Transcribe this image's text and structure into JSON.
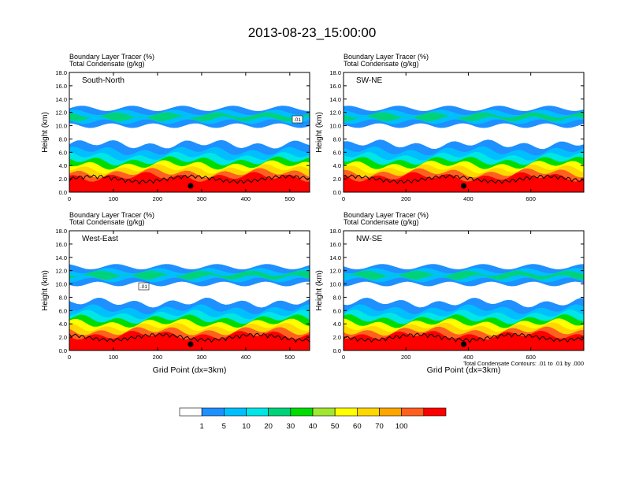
{
  "title": "2013-08-23_15:00:00",
  "colors": {
    "levels": [
      "#ffffff",
      "#1e90ff",
      "#00bfff",
      "#00e5e5",
      "#00d27a",
      "#00dc00",
      "#a0e632",
      "#ffff00",
      "#ffd700",
      "#ffa500",
      "#ff6020",
      "#ff0000"
    ],
    "line": "#000000"
  },
  "colorbar": {
    "labels": [
      "1",
      "5",
      "10",
      "20",
      "30",
      "40",
      "50",
      "60",
      "70",
      "100"
    ]
  },
  "footnote": "Total Condensate Contours: .01 to .01 by .000",
  "chart_data": [
    {
      "type": "heatmap",
      "section": "South-North",
      "subtitle_line1": "Boundary Layer Tracer   (%)",
      "subtitle_line2": "Total Condensate   (g/kg)",
      "xlabel": "",
      "ylabel": "Height (km)",
      "xlim": [
        0,
        545
      ],
      "ylim": [
        0,
        18
      ],
      "xticks": [
        "0",
        "100",
        "200",
        "300",
        "400",
        "500"
      ],
      "yticks": [
        "0.0",
        "2.0",
        "4.0",
        "6.0",
        "8.0",
        "10.0",
        "12.0",
        "14.0",
        "16.0",
        "18.0"
      ],
      "marker_x": 275,
      "contour_label": ".01"
    },
    {
      "type": "heatmap",
      "section": "SW-NE",
      "subtitle_line1": "Boundary Layer Tracer   (%)",
      "subtitle_line2": "Total Condensate   (g/kg)",
      "xlabel": "",
      "ylabel": "Height (km)",
      "xlim": [
        0,
        770
      ],
      "ylim": [
        0,
        18
      ],
      "xticks": [
        "0",
        "200",
        "400",
        "600"
      ],
      "yticks": [
        "0.0",
        "2.0",
        "4.0",
        "6.0",
        "8.0",
        "10.0",
        "12.0",
        "14.0",
        "16.0",
        "18.0"
      ],
      "marker_x": 385,
      "contour_label": ""
    },
    {
      "type": "heatmap",
      "section": "West-East",
      "subtitle_line1": "Boundary Layer Tracer   (%)",
      "subtitle_line2": "Total Condensate   (g/kg)",
      "xlabel": "Grid Point (dx=3km)",
      "ylabel": "Height (km)",
      "xlim": [
        0,
        545
      ],
      "ylim": [
        0,
        18
      ],
      "xticks": [
        "0",
        "100",
        "200",
        "300",
        "400",
        "500"
      ],
      "yticks": [
        "0.0",
        "2.0",
        "4.0",
        "6.0",
        "8.0",
        "10.0",
        "12.0",
        "14.0",
        "16.0",
        "18.0"
      ],
      "marker_x": 275,
      "contour_label": ".01"
    },
    {
      "type": "heatmap",
      "section": "NW-SE",
      "subtitle_line1": "Boundary Layer Tracer   (%)",
      "subtitle_line2": "Total Condensate   (g/kg)",
      "xlabel": "Grid Point (dx=3km)",
      "ylabel": "Height (km)",
      "xlim": [
        0,
        770
      ],
      "ylim": [
        0,
        18
      ],
      "xticks": [
        "0",
        "200",
        "400",
        "600"
      ],
      "yticks": [
        "0.0",
        "2.0",
        "4.0",
        "6.0",
        "8.0",
        "10.0",
        "12.0",
        "14.0",
        "16.0",
        "18.0"
      ],
      "marker_x": 385,
      "contour_label": ""
    }
  ]
}
